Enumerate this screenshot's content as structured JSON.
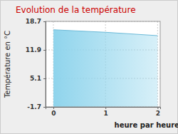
{
  "chart_data": {
    "type": "area",
    "title": "Evolution de la température",
    "x_label": "heure par heure",
    "y_label": "Température en °C",
    "x": [
      0,
      1,
      2
    ],
    "values": [
      16.7,
      16.1,
      15.3
    ],
    "color": "#8fd4ec",
    "xlim": [
      -0.15,
      2.05
    ],
    "ylim": [
      -1.7,
      18.7
    ],
    "xticks": [
      0,
      1,
      2
    ],
    "yticks": [
      -1.7,
      5.1,
      11.9,
      18.7
    ],
    "grid": true
  }
}
